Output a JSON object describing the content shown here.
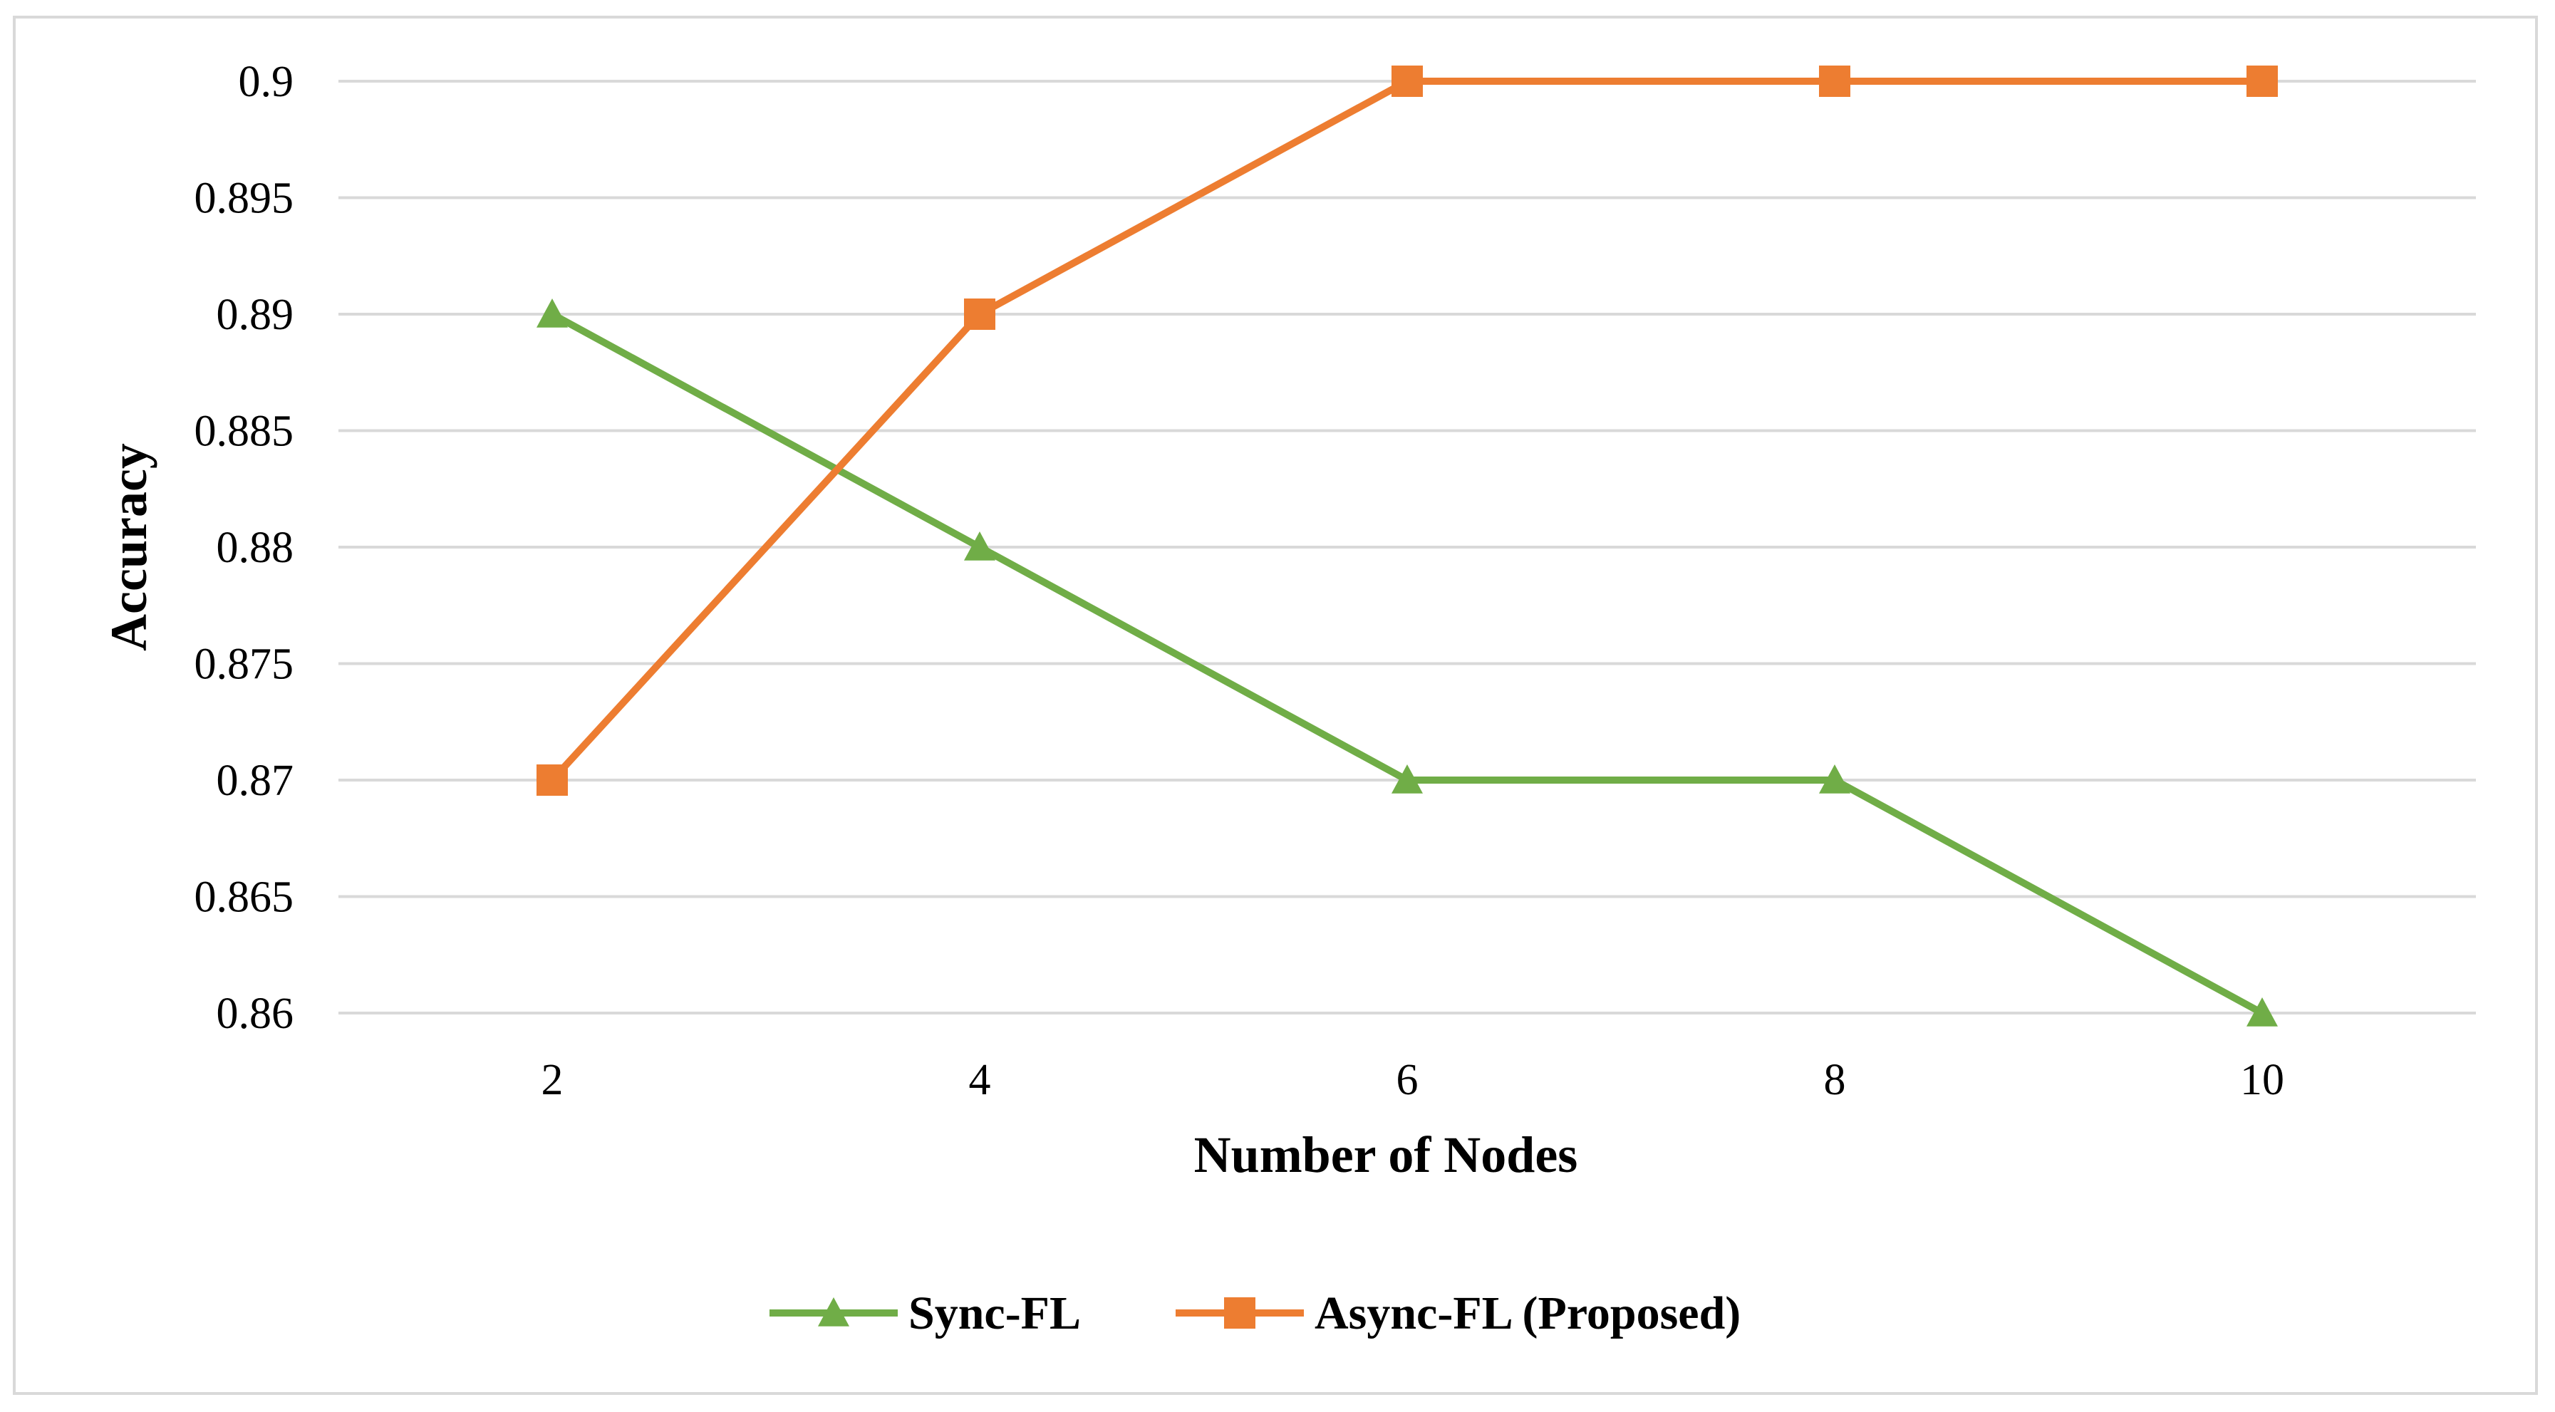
{
  "chart_data": {
    "type": "line",
    "x": [
      2,
      4,
      6,
      8,
      10
    ],
    "x_tick_labels": [
      "2",
      "4",
      "6",
      "8",
      "10"
    ],
    "y_tick_labels": [
      "0.86",
      "0.865",
      "0.87",
      "0.875",
      "0.88",
      "0.885",
      "0.89",
      "0.895",
      "0.9"
    ],
    "ylim": [
      0.86,
      0.9
    ],
    "y_step": 0.005,
    "xlabel": "Number of Nodes",
    "ylabel": "Accuracy",
    "grid": "horizontal",
    "legend_position": "bottom",
    "series": [
      {
        "name": "Sync-FL",
        "values": [
          0.89,
          0.88,
          0.87,
          0.87,
          0.86
        ],
        "color": "#70ad47",
        "marker": "triangle"
      },
      {
        "name": "Async-FL (Proposed)",
        "values": [
          0.87,
          0.89,
          0.9,
          0.9,
          0.9
        ],
        "color": "#ed7d31",
        "marker": "square"
      }
    ]
  }
}
